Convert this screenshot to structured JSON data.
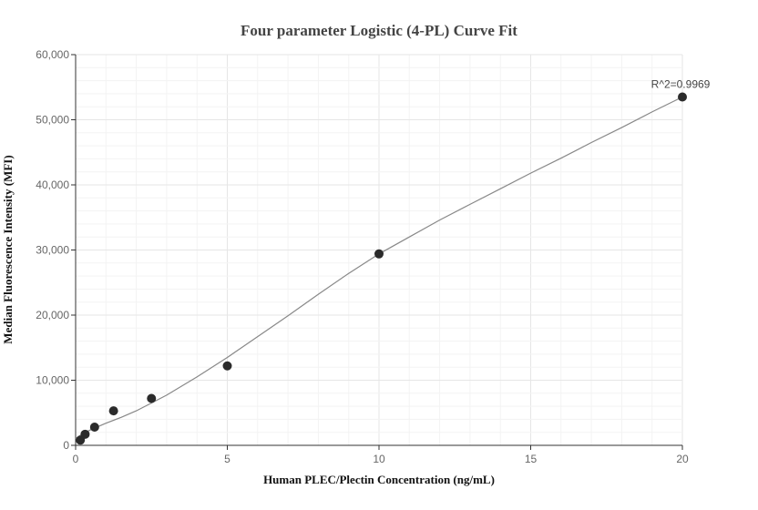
{
  "chart_data": {
    "type": "scatter",
    "title": "Four parameter Logistic (4-PL) Curve Fit",
    "xlabel": "Human PLEC/Plectin Concentration (ng/mL)",
    "ylabel": "Median Fluorescence Intensity (MFI)",
    "xlim": [
      0,
      20
    ],
    "ylim": [
      0,
      60000
    ],
    "x_ticks": [
      0,
      5,
      10,
      15,
      20
    ],
    "x_tick_labels": [
      "0",
      "5",
      "10",
      "15",
      "20"
    ],
    "y_ticks": [
      0,
      10000,
      20000,
      30000,
      40000,
      50000,
      60000
    ],
    "y_tick_labels": [
      "0",
      "10,000",
      "20,000",
      "30,000",
      "40,000",
      "50,000",
      "60,000"
    ],
    "grid": true,
    "points": [
      {
        "x": 0.156,
        "y": 800
      },
      {
        "x": 0.313,
        "y": 1700
      },
      {
        "x": 0.625,
        "y": 2800
      },
      {
        "x": 1.25,
        "y": 5300
      },
      {
        "x": 2.5,
        "y": 7200
      },
      {
        "x": 5,
        "y": 12200
      },
      {
        "x": 10,
        "y": 29400
      },
      {
        "x": 20,
        "y": 53500
      }
    ],
    "fit_curve": {
      "model": "4PL",
      "x": [
        0.0,
        0.2,
        0.5,
        1.0,
        1.5,
        2.0,
        2.5,
        3.0,
        4.0,
        5.0,
        6.0,
        7.0,
        8.0,
        9.0,
        10.0,
        11.0,
        12.0,
        13.0,
        14.0,
        15.0,
        16.0,
        17.0,
        18.0,
        19.0,
        20.0
      ],
      "y": [
        1000,
        1700,
        2400,
        3400,
        4300,
        5300,
        6500,
        7700,
        10500,
        13500,
        16700,
        19900,
        23200,
        26400,
        29400,
        32000,
        34600,
        37000,
        39400,
        41800,
        44100,
        46500,
        48800,
        51200,
        53500
      ]
    },
    "annotations": [
      {
        "text": "R^2=0.9969",
        "x": 20,
        "y": 53500
      }
    ]
  }
}
